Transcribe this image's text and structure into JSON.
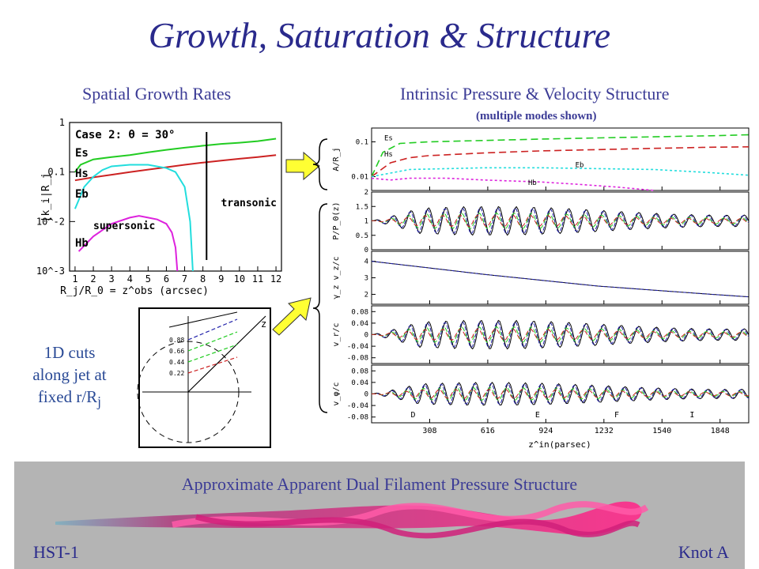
{
  "title": "Growth, Saturation & Structure",
  "left_heading": "Spatial Growth Rates",
  "right_heading": "Intrinsic Pressure & Velocity Structure",
  "right_subheading": "(multiple modes shown)",
  "cuts_caption": {
    "line1": "1D cuts",
    "line2": "along jet at",
    "line3_prefix": "fixed r/R",
    "line3_sub": "j"
  },
  "bottom_title": "Approximate Apparent Dual Filament Pressure Structure",
  "bottom_left_label": "HST-1",
  "bottom_right_label": "Knot A",
  "colors": {
    "Es": "#22cc22",
    "Hs": "#cc2222",
    "Eb": "#22dddd",
    "Hb": "#dd22dd",
    "title": "#2a2a8c",
    "blue": "#2222aa"
  },
  "chart_data": [
    {
      "type": "line",
      "title": "Case 2: θ = 30°",
      "xlabel": "R_j/R_0 = z^obs (arcsec)",
      "ylabel": "|k_i|R_j",
      "yscale": "log",
      "xlim": [
        0.7,
        12.3
      ],
      "ylim": [
        0.001,
        1
      ],
      "xticks": [
        "1",
        "2",
        "3",
        "4",
        "5",
        "6",
        "7",
        "8",
        "9",
        "10",
        "11",
        "12"
      ],
      "yticks": [
        "1",
        "0.1",
        "10^-2",
        "10^-3"
      ],
      "annotations": {
        "transonic": "transonic",
        "supersonic": "supersonic",
        "transonic_x": 8.2
      },
      "series": [
        {
          "name": "Es",
          "x": [
            1,
            1.3,
            2,
            3,
            4,
            5,
            6,
            7,
            8,
            9,
            10,
            11,
            12
          ],
          "y": [
            0.1,
            0.14,
            0.18,
            0.2,
            0.22,
            0.25,
            0.28,
            0.31,
            0.34,
            0.37,
            0.39,
            0.42,
            0.47
          ]
        },
        {
          "name": "Hs",
          "x": [
            1,
            2,
            3,
            4,
            5,
            6,
            7,
            8,
            9,
            10,
            11,
            12
          ],
          "y": [
            0.068,
            0.078,
            0.088,
            0.1,
            0.112,
            0.125,
            0.14,
            0.155,
            0.17,
            0.185,
            0.2,
            0.22
          ]
        },
        {
          "name": "Eb",
          "x": [
            1,
            1.5,
            2,
            2.5,
            3,
            4,
            5,
            6,
            6.5,
            7,
            7.3,
            7.45
          ],
          "y": [
            0.018,
            0.05,
            0.08,
            0.11,
            0.13,
            0.14,
            0.14,
            0.12,
            0.1,
            0.05,
            0.01,
            0.001
          ]
        },
        {
          "name": "Hb",
          "x": [
            1.2,
            2,
            3,
            4,
            4.5,
            5,
            5.5,
            6,
            6.3,
            6.5,
            6.6
          ],
          "y": [
            0.0025,
            0.005,
            0.009,
            0.012,
            0.013,
            0.012,
            0.011,
            0.009,
            0.006,
            0.003,
            0.001
          ]
        }
      ]
    },
    {
      "type": "line",
      "ylabel": "A/R_j",
      "yscale": "log",
      "yticks": [
        "0.1",
        "0.01"
      ],
      "ylim": [
        0.004,
        0.25
      ],
      "xlim": [
        0,
        2000
      ],
      "series": [
        {
          "name": "Es",
          "x": [
            0,
            60,
            150,
            300,
            600,
            900,
            1200,
            1500,
            1800,
            2000
          ],
          "y": [
            0.01,
            0.05,
            0.09,
            0.1,
            0.11,
            0.12,
            0.13,
            0.14,
            0.15,
            0.16
          ]
        },
        {
          "name": "Hs",
          "x": [
            0,
            100,
            200,
            300,
            600,
            900,
            1200,
            1500,
            1800,
            2000
          ],
          "y": [
            0.01,
            0.025,
            0.035,
            0.04,
            0.048,
            0.055,
            0.06,
            0.065,
            0.07,
            0.072
          ]
        },
        {
          "name": "Eb",
          "x": [
            0,
            200,
            400,
            600,
            900,
            1200,
            1500,
            1800,
            2000
          ],
          "y": [
            0.01,
            0.016,
            0.017,
            0.018,
            0.018,
            0.017,
            0.016,
            0.013,
            0.011
          ]
        },
        {
          "name": "Hb",
          "x": [
            0,
            100,
            200,
            400,
            600,
            900,
            1100,
            1300,
            1500
          ],
          "y": [
            0.009,
            0.008,
            0.009,
            0.009,
            0.008,
            0.007,
            0.006,
            0.005,
            0.004
          ]
        }
      ]
    },
    {
      "type": "line",
      "ylabel": "P/P_0(z)",
      "yticks": [
        "2",
        "1.5",
        "1",
        "0.5",
        "0"
      ],
      "ylim": [
        0,
        2
      ],
      "xlim": [
        0,
        2000
      ],
      "series": [
        {
          "name": "",
          "wave": {
            "base": 1.0,
            "amp": 0.5,
            "wavelength": 95,
            "damping": 0
          }
        }
      ]
    },
    {
      "type": "line",
      "ylabel": "γ_z v_z/c",
      "yticks": [
        "4",
        "3",
        "2"
      ],
      "ylim": [
        1.4,
        4.6
      ],
      "xlim": [
        0,
        2000
      ],
      "series": [
        {
          "name": "",
          "x": [
            0,
            300,
            600,
            900,
            1200,
            1500,
            1800,
            2000
          ],
          "y": [
            4.0,
            3.6,
            3.2,
            2.85,
            2.5,
            2.25,
            2.0,
            1.85
          ]
        }
      ]
    },
    {
      "type": "line",
      "ylabel": "v_r/c",
      "yticks": [
        "0.08",
        "0.04",
        "0",
        "-0.04",
        "-0.08"
      ],
      "ylim": [
        -0.1,
        0.1
      ],
      "xlim": [
        0,
        2000
      ],
      "series": [
        {
          "name": "",
          "wave": {
            "base": 0,
            "amp": 0.05,
            "wavelength": 95,
            "damping": 0
          }
        }
      ]
    },
    {
      "type": "line",
      "ylabel": "v_φ/c",
      "xlabel": "z^in(parsec)",
      "yticks": [
        "0.08",
        "0.04",
        "0",
        "-0.04",
        "-0.08"
      ],
      "ylim": [
        -0.1,
        0.1
      ],
      "xlim": [
        0,
        2000
      ],
      "xticks": [
        "308",
        "616",
        "924",
        "1232",
        "1540",
        "1848"
      ],
      "xtick_values": [
        308,
        616,
        924,
        1232,
        1540,
        1848
      ],
      "annotations": [
        {
          "text": "D",
          "x": 220
        },
        {
          "text": "E",
          "x": 880
        },
        {
          "text": "F",
          "x": 1300
        },
        {
          "text": "I",
          "x": 1700
        }
      ],
      "series": [
        {
          "name": "",
          "wave": {
            "base": 0,
            "amp": 0.04,
            "wavelength": 90,
            "damping": 0
          }
        }
      ]
    }
  ],
  "inset": {
    "z_label": "z",
    "radii": [
      "0.88",
      "0.66",
      "0.44",
      "0.22"
    ]
  }
}
